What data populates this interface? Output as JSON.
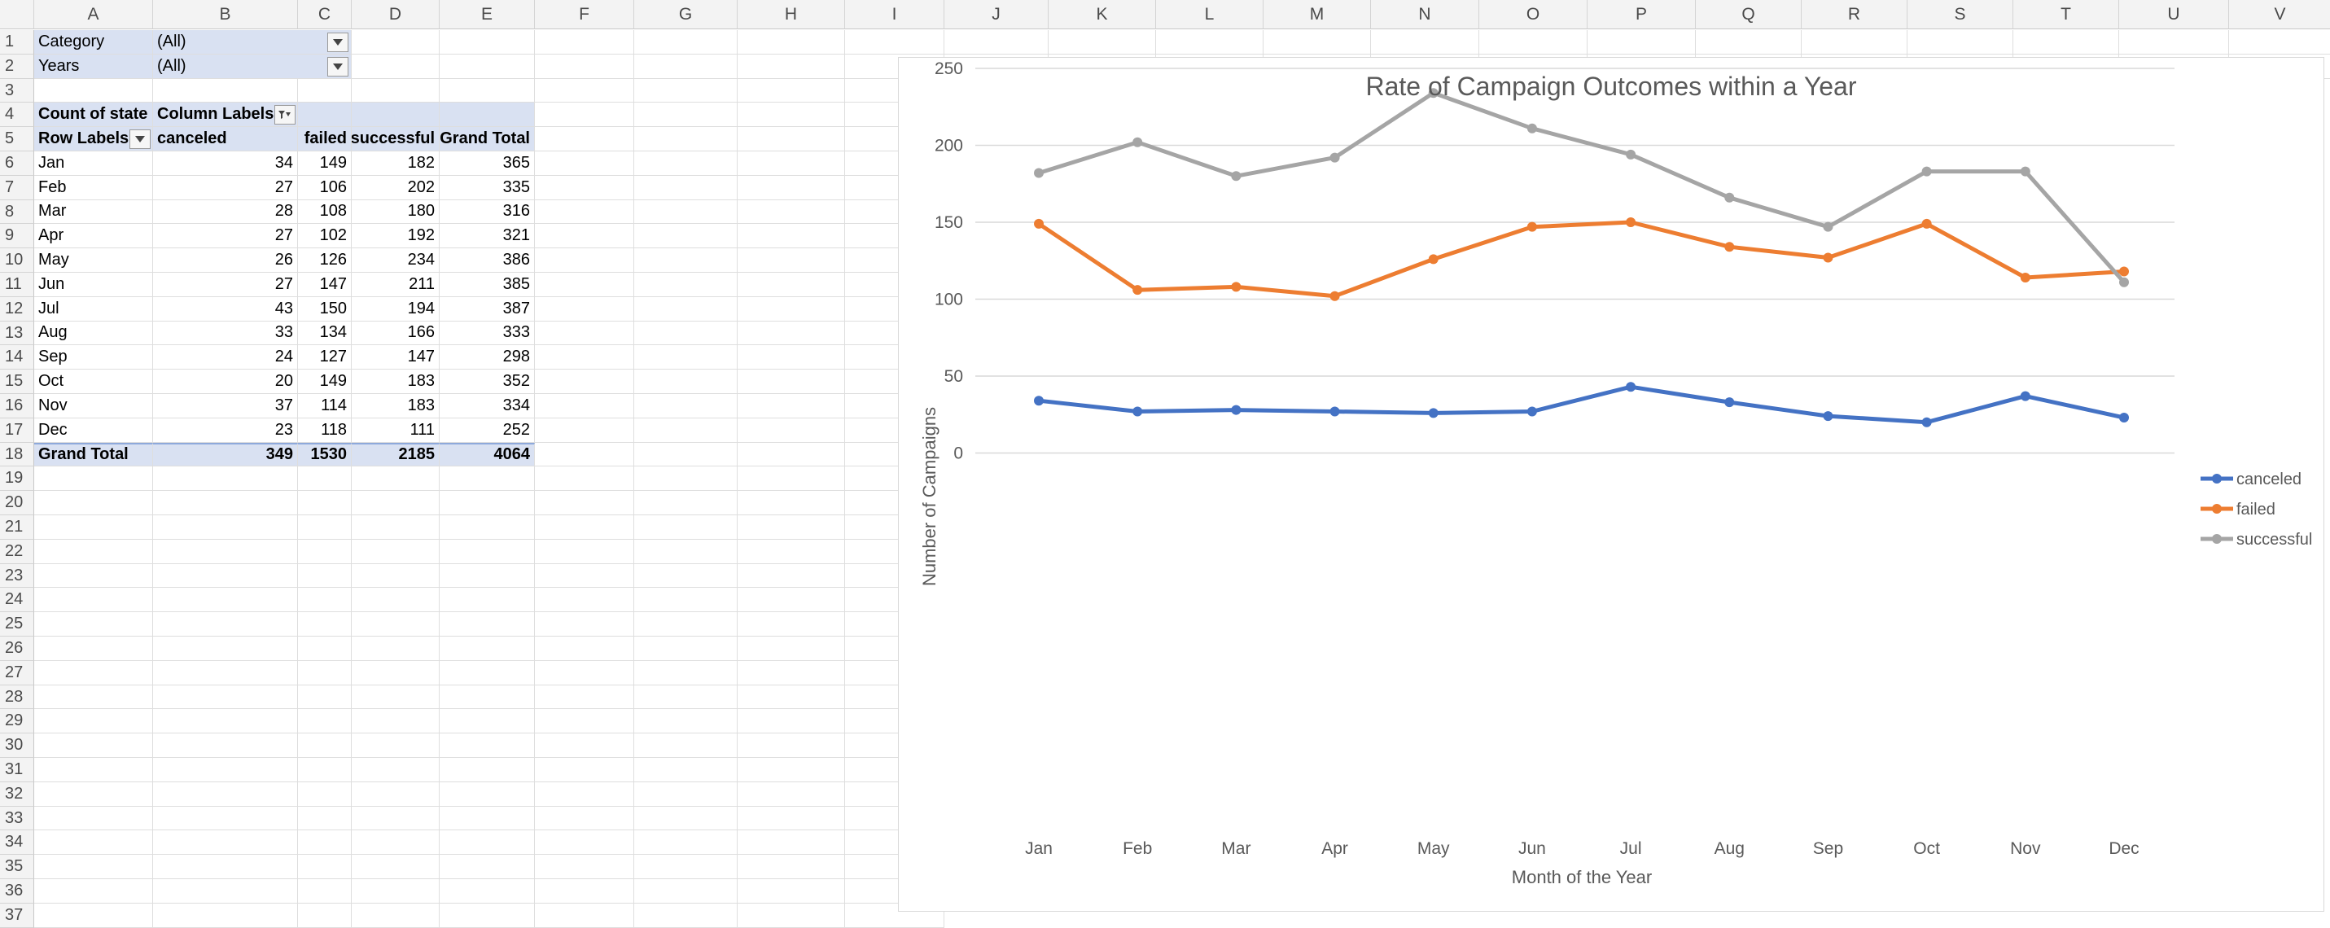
{
  "sheet": {
    "columns": [
      "A",
      "B",
      "C",
      "D",
      "E",
      "F",
      "G",
      "H",
      "I",
      "J",
      "K",
      "L",
      "M",
      "N",
      "O",
      "P",
      "Q",
      "R",
      "S",
      "T",
      "U",
      "V"
    ],
    "row_count": 36
  },
  "filters": [
    {
      "label": "Category",
      "value": "(All)"
    },
    {
      "label": "Years",
      "value": "(All)"
    }
  ],
  "pivot": {
    "value_label": "Count of state",
    "column_labels": "Column Labels",
    "row_labels": "Row Labels",
    "headers": [
      "canceled",
      "failed",
      "successful",
      "Grand Total"
    ],
    "rows": [
      {
        "label": "Jan",
        "values": [
          "34",
          "149",
          "182",
          "365"
        ]
      },
      {
        "label": "Feb",
        "values": [
          "27",
          "106",
          "202",
          "335"
        ]
      },
      {
        "label": "Mar",
        "values": [
          "28",
          "108",
          "180",
          "316"
        ]
      },
      {
        "label": "Apr",
        "values": [
          "27",
          "102",
          "192",
          "321"
        ]
      },
      {
        "label": "May",
        "values": [
          "26",
          "126",
          "234",
          "386"
        ]
      },
      {
        "label": "Jun",
        "values": [
          "27",
          "147",
          "211",
          "385"
        ]
      },
      {
        "label": "Jul",
        "values": [
          "43",
          "150",
          "194",
          "387"
        ]
      },
      {
        "label": "Aug",
        "values": [
          "33",
          "134",
          "166",
          "333"
        ]
      },
      {
        "label": "Sep",
        "values": [
          "24",
          "127",
          "147",
          "298"
        ]
      },
      {
        "label": "Oct",
        "values": [
          "20",
          "149",
          "183",
          "352"
        ]
      },
      {
        "label": "Nov",
        "values": [
          "37",
          "114",
          "183",
          "334"
        ]
      },
      {
        "label": "Dec",
        "values": [
          "23",
          "118",
          "111",
          "252"
        ]
      }
    ],
    "grand_total": {
      "label": "Grand Total",
      "values": [
        "349",
        "1530",
        "2185",
        "4064"
      ]
    }
  },
  "chart_data": {
    "type": "line",
    "title": "Rate of Campaign Outcomes within a Year",
    "xlabel": "Month of the Year",
    "ylabel": "Number of Campaigns",
    "categories": [
      "Jan",
      "Feb",
      "Mar",
      "Apr",
      "May",
      "Jun",
      "Jul",
      "Aug",
      "Sep",
      "Oct",
      "Nov",
      "Dec"
    ],
    "ylim": [
      0,
      250
    ],
    "yticks": [
      0,
      50,
      100,
      150,
      200,
      250
    ],
    "grid": true,
    "legend": "right",
    "series": [
      {
        "name": "canceled",
        "color": "#4472c4",
        "values": [
          34,
          27,
          28,
          27,
          26,
          27,
          43,
          33,
          24,
          20,
          37,
          23
        ]
      },
      {
        "name": "failed",
        "color": "#ed7d31",
        "values": [
          149,
          106,
          108,
          102,
          126,
          147,
          150,
          134,
          127,
          149,
          114,
          118
        ]
      },
      {
        "name": "successful",
        "color": "#a5a5a5",
        "values": [
          182,
          202,
          180,
          192,
          234,
          211,
          194,
          166,
          147,
          183,
          183,
          111
        ]
      }
    ]
  }
}
